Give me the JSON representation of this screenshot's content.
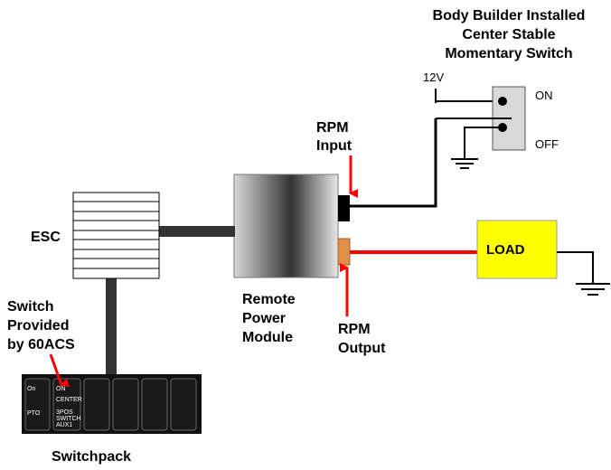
{
  "title_lines": [
    "Body Builder Installed",
    "Center Stable",
    "Momentary Switch"
  ],
  "voltage": "12V",
  "switch_on": "ON",
  "switch_off": "OFF",
  "rpm_input": [
    "RPM",
    "Input"
  ],
  "rpm_output": [
    "RPM",
    "Output"
  ],
  "esc": "ESC",
  "module": [
    "Remote",
    "Power",
    "Module"
  ],
  "load": "LOAD",
  "switch_note": [
    "Switch",
    "Provided",
    "by 60ACS"
  ],
  "switchpack_label": "Switchpack",
  "rocker1": {
    "top": "On",
    "bottom": "PTO"
  },
  "rocker2": {
    "top": "ON",
    "mid": "CENTER",
    "bottom1": "3POS",
    "bottom2": "SWITCH",
    "bottom3": "AUX1"
  },
  "colors": {
    "signal_red": "#ff0000",
    "load_yellow": "#ffff00",
    "output_orange": "#e0904a",
    "wire": "#000000",
    "cable": "#333333"
  }
}
